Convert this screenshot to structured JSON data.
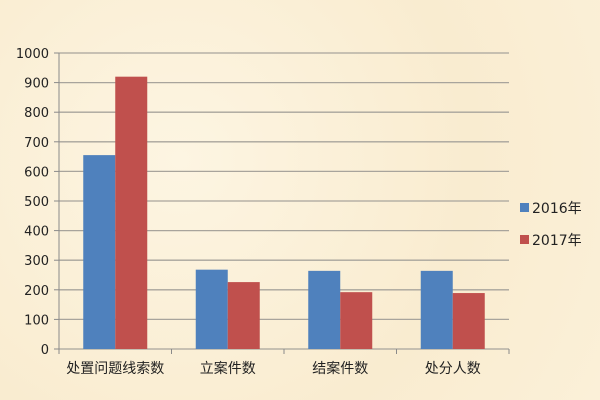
{
  "chart_data": {
    "type": "bar",
    "categories": [
      "处置问题线索数",
      "立案件数",
      "结案件数",
      "处分人数"
    ],
    "series": [
      {
        "name": "2016年",
        "values": [
          655,
          268,
          264,
          264
        ],
        "color": "#4f81bd"
      },
      {
        "name": "2017年",
        "values": [
          920,
          226,
          192,
          189
        ],
        "color": "#c0504d"
      }
    ],
    "ylim": [
      0,
      1000
    ],
    "yticks": [
      "0",
      "100",
      "200",
      "300",
      "400",
      "500",
      "600",
      "700",
      "800",
      "900",
      "1000"
    ],
    "grid": true,
    "legend": "right"
  }
}
